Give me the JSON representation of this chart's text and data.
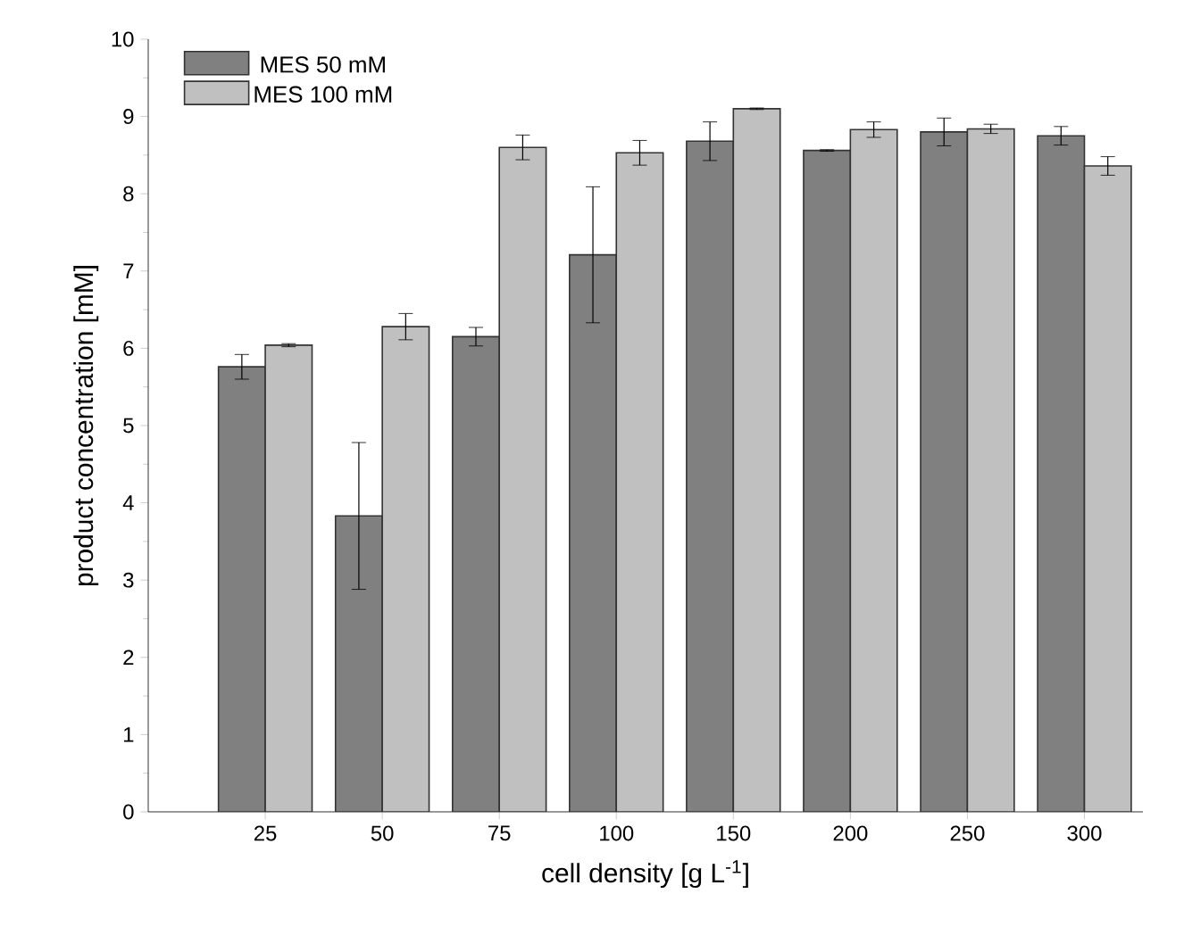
{
  "chart_data": {
    "type": "bar",
    "xlabel": "cell density [g L$^{-1}$]",
    "ylabel": "product concentration [mM]",
    "categories": [
      "25",
      "50",
      "75",
      "100",
      "150",
      "200",
      "250",
      "300"
    ],
    "series": [
      {
        "name": "MES 50 mM",
        "color": "#808080",
        "values": [
          5.76,
          3.83,
          6.15,
          7.21,
          8.68,
          8.56,
          8.8,
          8.75
        ],
        "errors": [
          0.16,
          0.95,
          0.12,
          0.88,
          0.25,
          0.01,
          0.18,
          0.12
        ]
      },
      {
        "name": "MES 100 mM",
        "color": "#c0c0c0",
        "values": [
          6.04,
          6.28,
          8.6,
          8.53,
          9.1,
          8.83,
          8.84,
          8.36
        ],
        "errors": [
          0.02,
          0.17,
          0.16,
          0.16,
          0.01,
          0.1,
          0.06,
          0.12
        ]
      }
    ],
    "ylim": [
      0,
      10
    ],
    "yticks": [
      0,
      1,
      2,
      3,
      4,
      5,
      6,
      7,
      8,
      9,
      10
    ],
    "legend": "top left"
  }
}
